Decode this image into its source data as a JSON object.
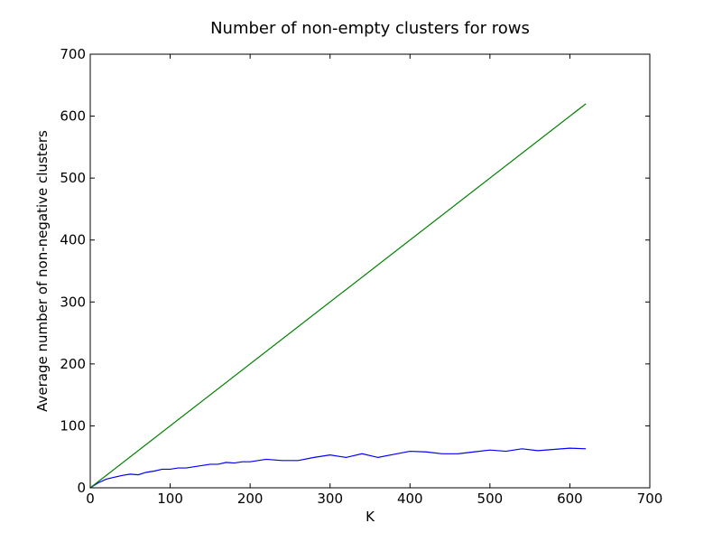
{
  "chart_data": {
    "type": "line",
    "title": "Number of non-empty clusters for rows",
    "xlabel": "K",
    "ylabel": "Average number of non-negative clusters",
    "xlim": [
      0,
      700
    ],
    "ylim": [
      0,
      700
    ],
    "xticks": [
      0,
      100,
      200,
      300,
      400,
      500,
      600,
      700
    ],
    "yticks": [
      0,
      100,
      200,
      300,
      400,
      500,
      600,
      700
    ],
    "grid": false,
    "series": [
      {
        "color": "#0000ff",
        "x": [
          0,
          10,
          20,
          30,
          40,
          50,
          60,
          70,
          80,
          90,
          100,
          110,
          120,
          130,
          140,
          150,
          160,
          170,
          180,
          190,
          200,
          220,
          240,
          260,
          280,
          300,
          320,
          340,
          360,
          380,
          400,
          420,
          440,
          460,
          480,
          500,
          520,
          540,
          560,
          580,
          600,
          620
        ],
        "y": [
          0,
          8,
          14,
          17,
          20,
          22,
          21,
          25,
          27,
          30,
          30,
          32,
          32,
          34,
          36,
          38,
          38,
          41,
          40,
          42,
          42,
          46,
          44,
          44,
          49,
          53,
          49,
          55,
          49,
          54,
          59,
          58,
          55,
          55,
          58,
          61,
          59,
          63,
          60,
          62,
          64,
          63
        ]
      },
      {
        "color": "#008000",
        "x": [
          0,
          620
        ],
        "y": [
          0,
          620
        ]
      }
    ]
  }
}
